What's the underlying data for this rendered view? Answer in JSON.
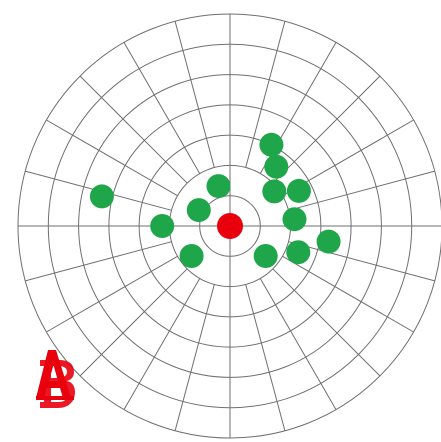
{
  "chart_data": {
    "type": "scatter",
    "coordinate_system": "polar",
    "grid": true,
    "ring_count": 7,
    "spoke_count": 24,
    "colors": {
      "grid": "#6f6f6f",
      "points": "#1fa64a",
      "center": "#e8000d",
      "logo": "#e8000d"
    },
    "center_point": {
      "label": "center",
      "r": 0,
      "theta_deg": 0
    },
    "points": [
      {
        "r": 0.62,
        "theta_deg": 167
      },
      {
        "r": 0.165,
        "theta_deg": 153
      },
      {
        "r": 0.32,
        "theta_deg": 180
      },
      {
        "r": 0.23,
        "theta_deg": 218
      },
      {
        "r": 0.196,
        "theta_deg": 106
      },
      {
        "r": 0.43,
        "theta_deg": 63
      },
      {
        "r": 0.355,
        "theta_deg": 52
      },
      {
        "r": 0.265,
        "theta_deg": 38
      },
      {
        "r": 0.365,
        "theta_deg": 27
      },
      {
        "r": 0.306,
        "theta_deg": 6
      },
      {
        "r": 0.345,
        "theta_deg": 339
      },
      {
        "r": 0.471,
        "theta_deg": 351
      },
      {
        "r": 0.22,
        "theta_deg": 320
      }
    ]
  },
  "logo": {
    "name": "logo-icon",
    "text": "AB"
  }
}
